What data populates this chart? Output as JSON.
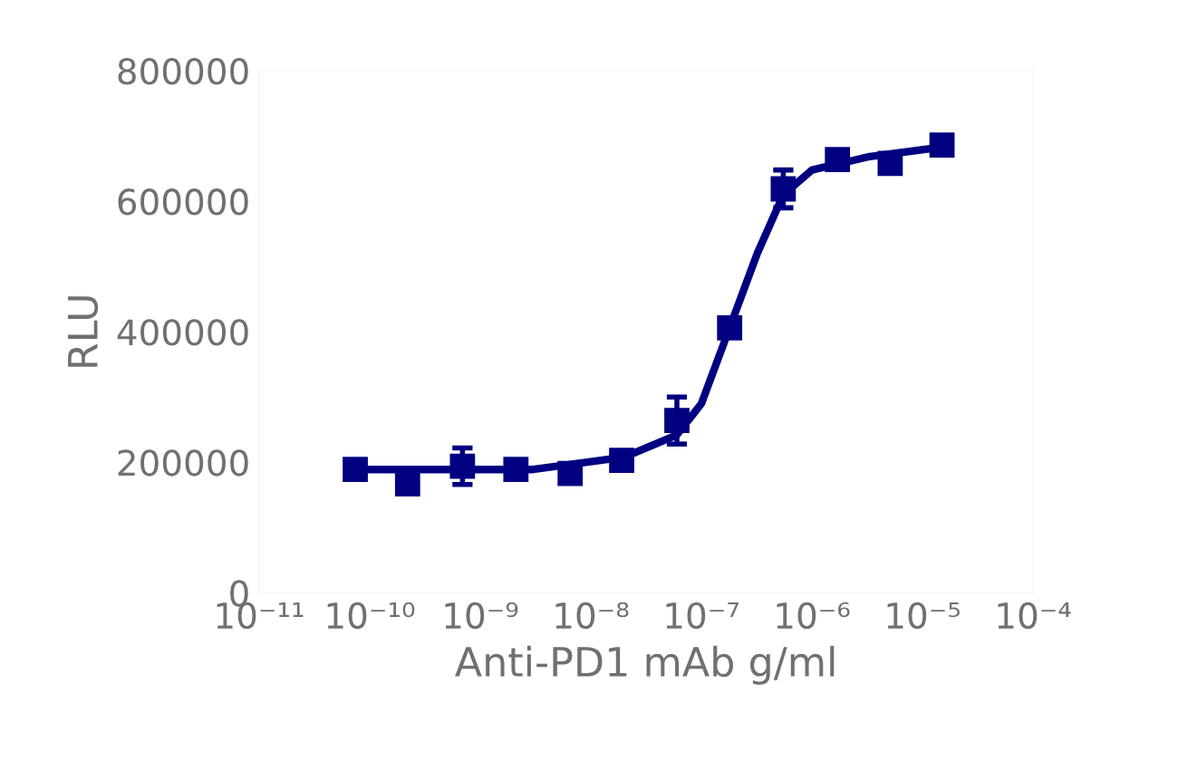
{
  "chart_data": {
    "type": "scatter",
    "xlabel": "Anti-PD1 mAb g/ml",
    "ylabel": "RLU",
    "log": "x",
    "xlim": [
      1e-11,
      0.0001
    ],
    "xticks": [
      {
        "value": 1e-11,
        "label": "10⁻¹¹"
      },
      {
        "value": 1e-10,
        "label": "10⁻¹⁰"
      },
      {
        "value": 1e-09,
        "label": "10⁻⁹"
      },
      {
        "value": 1e-08,
        "label": "10⁻⁸"
      },
      {
        "value": 1e-07,
        "label": "10⁻⁷"
      },
      {
        "value": 1e-06,
        "label": "10⁻⁶"
      },
      {
        "value": 1e-05,
        "label": "10⁻⁵"
      },
      {
        "value": 0.0001,
        "label": "10⁻⁴"
      }
    ],
    "ylim": [
      0,
      800000
    ],
    "yticks": [
      0,
      200000,
      400000,
      600000,
      800000
    ],
    "grid": false,
    "legend": false,
    "series": [
      {
        "color": "#000080",
        "marker": "square",
        "x": [
          7.4e-11,
          2.2e-10,
          6.9e-10,
          2.1e-09,
          6.5e-09,
          1.9e-08,
          6e-08,
          1.8e-07,
          5.5e-07,
          1.7e-06,
          5.1e-06,
          1.5e-05
        ],
        "values": [
          189000,
          167000,
          194000,
          189000,
          183000,
          203000,
          264000,
          406000,
          619000,
          664000,
          658000,
          686000
        ],
        "errors": [
          null,
          null,
          28000,
          null,
          null,
          null,
          36000,
          null,
          29000,
          null,
          null,
          null
        ]
      },
      {
        "type": "line",
        "color": "#000080",
        "marker": "none",
        "line_style": "solid",
        "x": [
          7.4e-11,
          3e-09,
          2e-08,
          6e-08,
          1e-07,
          1.8e-07,
          3.2e-07,
          5.5e-07,
          1e-06,
          3.2e-06,
          1.5e-05
        ],
        "values": [
          189000,
          189000,
          208000,
          242000,
          290000,
          406000,
          520000,
          610000,
          648000,
          668000,
          683000
        ]
      }
    ]
  }
}
